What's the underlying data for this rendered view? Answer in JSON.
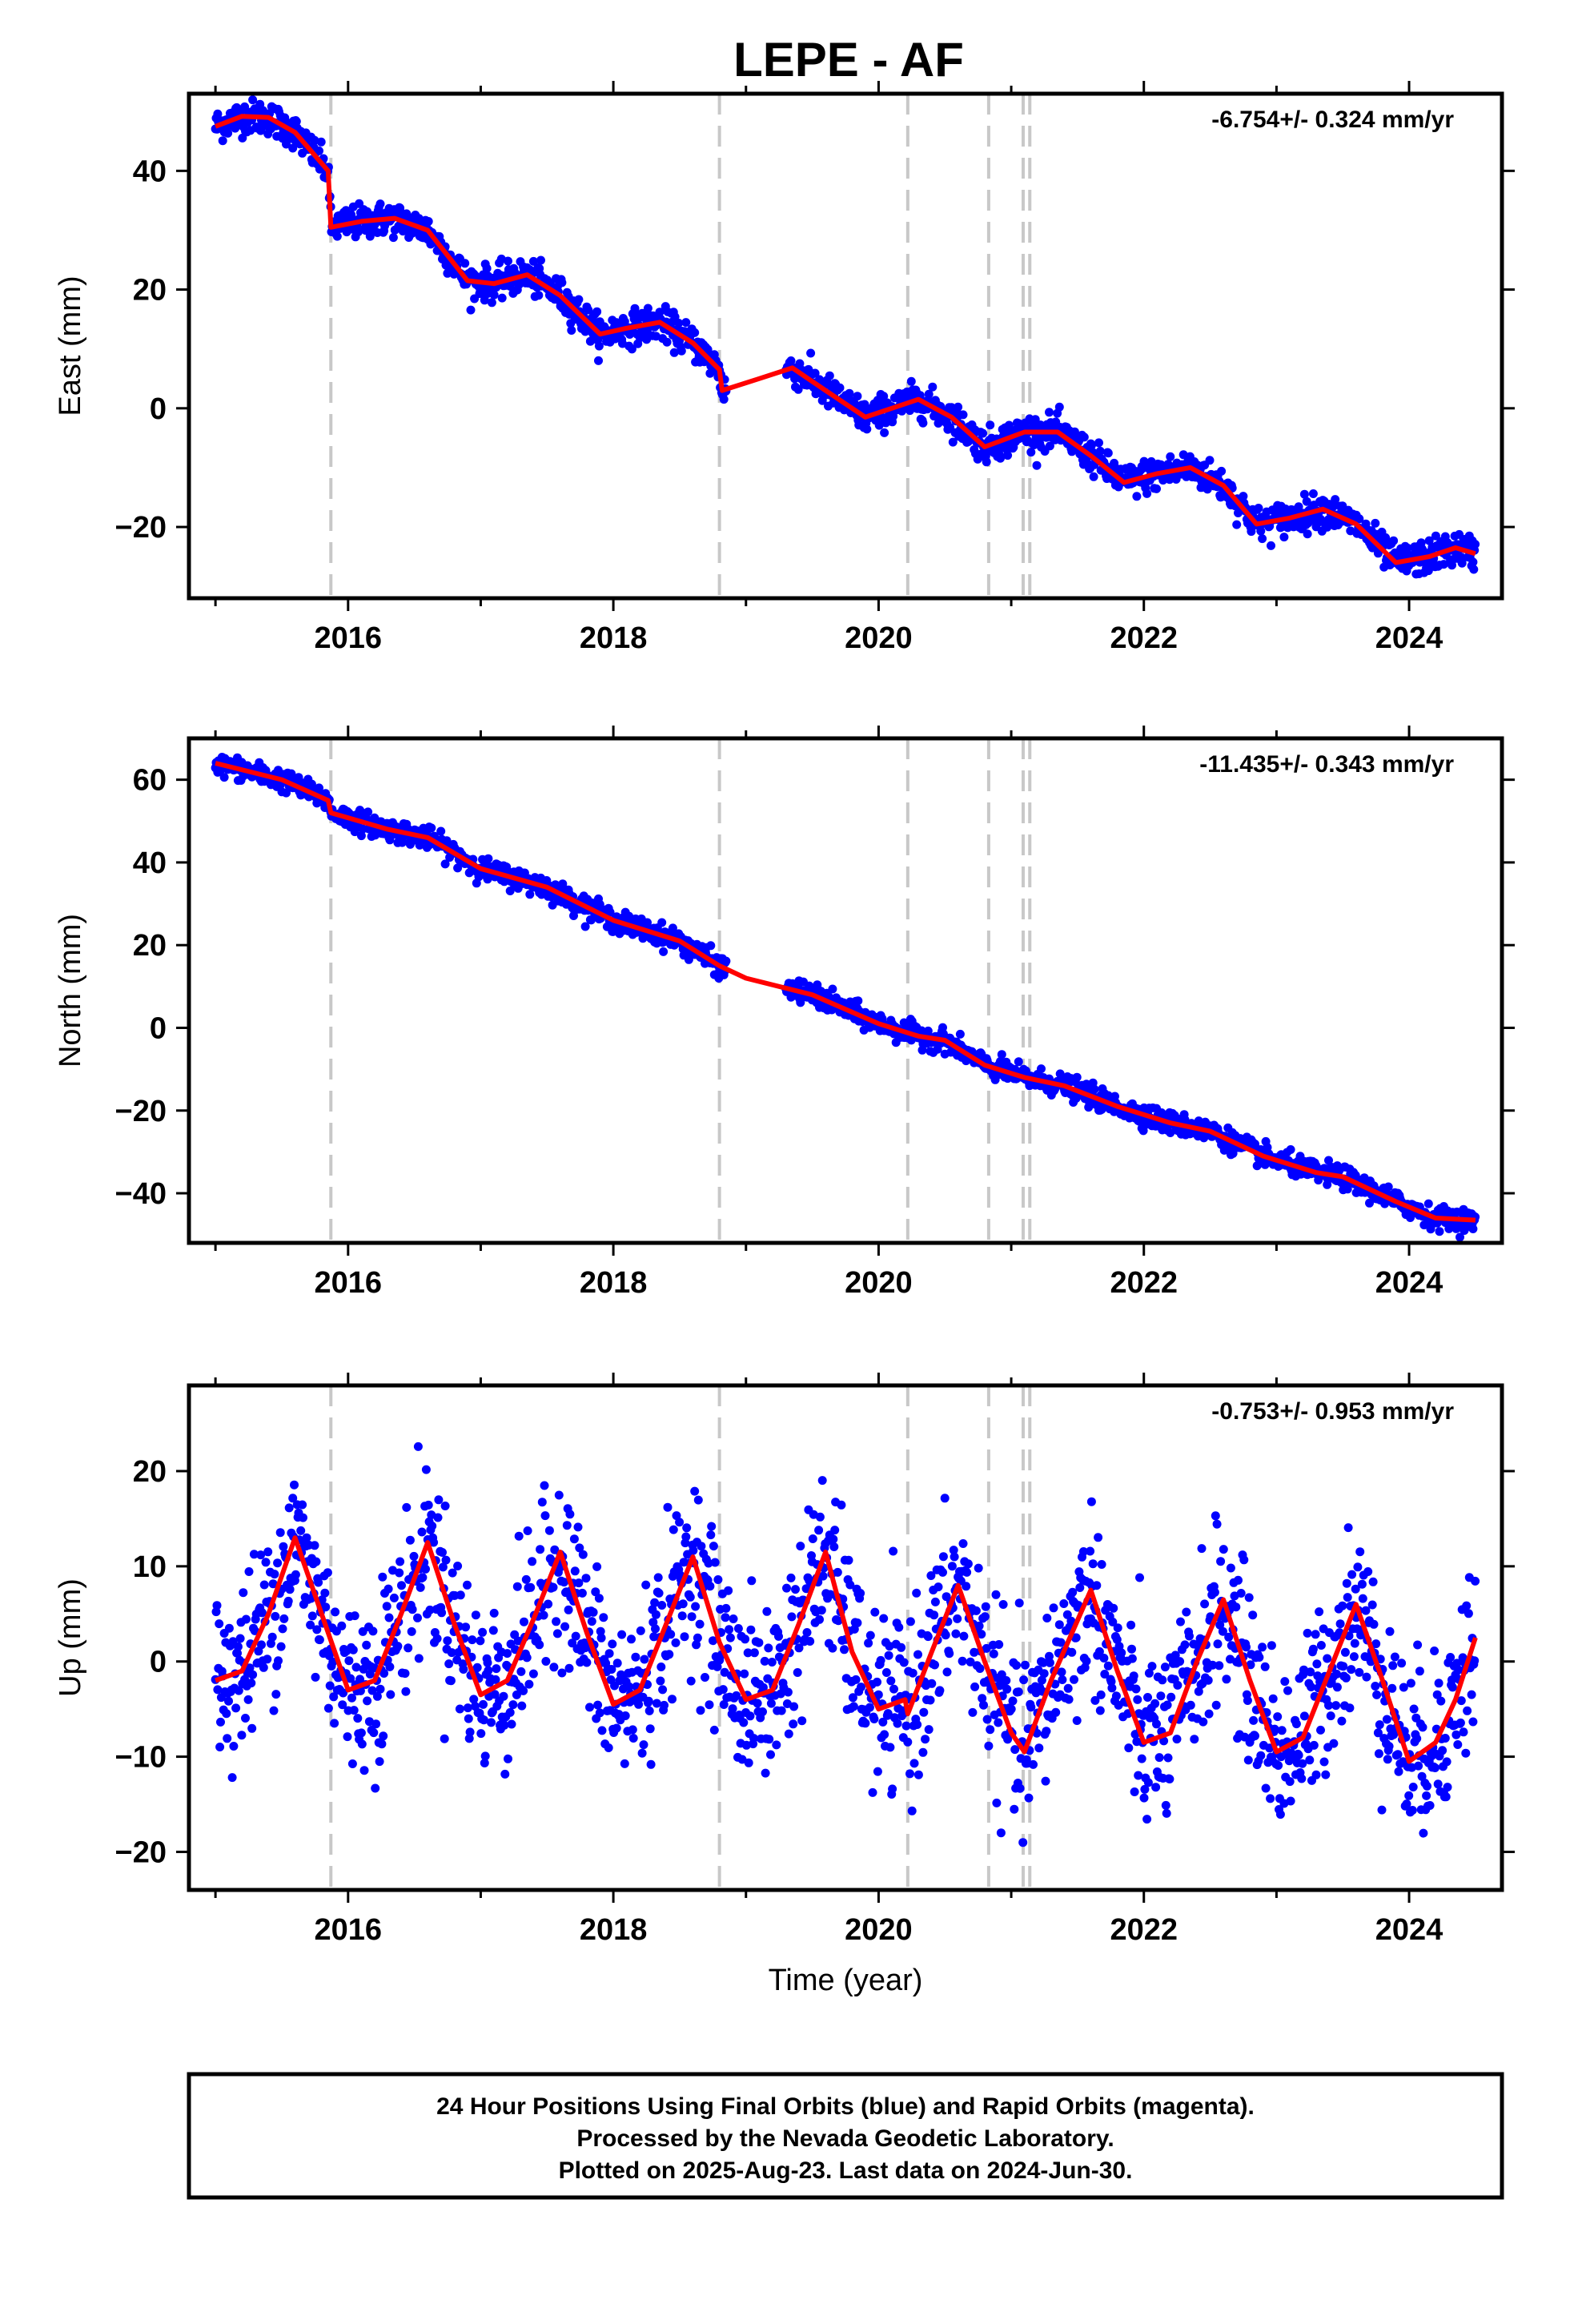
{
  "title": "LEPE - AF",
  "colors": {
    "points": "#0000ff",
    "model": "#ff0000",
    "events": "#c8c8c8",
    "frame": "#000000"
  },
  "caption": {
    "lines": [
      "24 Hour Positions Using Final Orbits (blue) and Rapid Orbits (magenta).",
      "Processed by the Nevada Geodetic Laboratory.",
      "Plotted on 2025-Aug-23. Last data on 2024-Jun-30."
    ]
  },
  "chart_data": [
    {
      "type": "scatter",
      "ylabel": "East (mm)",
      "rate": "-6.754+/- 0.324 mm/yr",
      "xlim": [
        2014.8,
        2024.7
      ],
      "ylim": [
        -32,
        53
      ],
      "yticks": [
        -20,
        0,
        20,
        40
      ],
      "xticks": [
        2016,
        2018,
        2020,
        2022,
        2024
      ],
      "x_tick_labels": [
        "2016",
        "2018",
        "2020",
        "2022",
        "2024"
      ],
      "y_tick_labels": [
        "−20",
        "0",
        "20",
        "40"
      ],
      "xlabel": "",
      "series": [
        {
          "kind": "points",
          "trend": -6.754,
          "offset_at_start": 47.5,
          "seasonal_amp": 2.2,
          "scatter_sd": 1.4
        },
        {
          "kind": "model",
          "points": [
            [
              2015.0,
              47.5
            ],
            [
              2015.2,
              49.2
            ],
            [
              2015.4,
              49.0
            ],
            [
              2015.6,
              46.5
            ],
            [
              2015.85,
              40.0
            ],
            [
              2015.87,
              30.5
            ],
            [
              2016.1,
              31.5
            ],
            [
              2016.35,
              32.0
            ],
            [
              2016.6,
              30.0
            ],
            [
              2016.9,
              21.5
            ],
            [
              2017.1,
              21.0
            ],
            [
              2017.35,
              22.5
            ],
            [
              2017.6,
              19.0
            ],
            [
              2017.9,
              12.5
            ],
            [
              2018.1,
              13.5
            ],
            [
              2018.35,
              14.5
            ],
            [
              2018.6,
              11.0
            ],
            [
              2018.8,
              6.5
            ],
            [
              2018.82,
              3.0
            ],
            [
              2019.1,
              5.0
            ],
            [
              2019.35,
              6.8
            ],
            [
              2019.6,
              3.0
            ],
            [
              2019.9,
              -1.5
            ],
            [
              2020.1,
              0.0
            ],
            [
              2020.3,
              1.5
            ],
            [
              2020.55,
              -1.5
            ],
            [
              2020.8,
              -6.5
            ],
            [
              2021.1,
              -4.0
            ],
            [
              2021.35,
              -4.0
            ],
            [
              2021.6,
              -8.0
            ],
            [
              2021.85,
              -12.5
            ],
            [
              2022.1,
              -11.0
            ],
            [
              2022.35,
              -10.0
            ],
            [
              2022.6,
              -13.0
            ],
            [
              2022.85,
              -19.5
            ],
            [
              2023.1,
              -18.5
            ],
            [
              2023.35,
              -17.0
            ],
            [
              2023.6,
              -19.5
            ],
            [
              2023.9,
              -26.0
            ],
            [
              2024.15,
              -25.0
            ],
            [
              2024.35,
              -23.5
            ],
            [
              2024.5,
              -24.5
            ]
          ]
        }
      ]
    },
    {
      "type": "scatter",
      "ylabel": "North (mm)",
      "rate": "-11.435+/- 0.343 mm/yr",
      "xlim": [
        2014.8,
        2024.7
      ],
      "ylim": [
        -52,
        70
      ],
      "yticks": [
        -40,
        -20,
        0,
        20,
        40,
        60
      ],
      "xticks": [
        2016,
        2018,
        2020,
        2022,
        2024
      ],
      "x_tick_labels": [
        "2016",
        "2018",
        "2020",
        "2022",
        "2024"
      ],
      "y_tick_labels": [
        "−40",
        "−20",
        "0",
        "20",
        "40",
        "60"
      ],
      "xlabel": "",
      "series": [
        {
          "kind": "points",
          "trend": -11.435,
          "offset_at_start": 63.5,
          "seasonal_amp": 1.2,
          "scatter_sd": 1.3
        },
        {
          "kind": "model",
          "points": [
            [
              2015.0,
              64.0
            ],
            [
              2015.5,
              60.0
            ],
            [
              2015.85,
              55.0
            ],
            [
              2015.87,
              52.0
            ],
            [
              2016.3,
              48.0
            ],
            [
              2016.6,
              46.0
            ],
            [
              2017.0,
              38.5
            ],
            [
              2017.5,
              34.0
            ],
            [
              2018.0,
              26.0
            ],
            [
              2018.5,
              21.0
            ],
            [
              2018.8,
              15.0
            ],
            [
              2019.0,
              12.0
            ],
            [
              2019.5,
              8.0
            ],
            [
              2020.0,
              1.0
            ],
            [
              2020.3,
              -2.0
            ],
            [
              2020.5,
              -3.0
            ],
            [
              2020.8,
              -9.0
            ],
            [
              2021.1,
              -12.0
            ],
            [
              2021.4,
              -14.0
            ],
            [
              2021.8,
              -19.0
            ],
            [
              2022.2,
              -23.0
            ],
            [
              2022.5,
              -25.0
            ],
            [
              2022.9,
              -31.0
            ],
            [
              2023.3,
              -35.0
            ],
            [
              2023.5,
              -36.0
            ],
            [
              2023.9,
              -42.0
            ],
            [
              2024.2,
              -46.0
            ],
            [
              2024.5,
              -46.5
            ]
          ]
        }
      ]
    },
    {
      "type": "scatter",
      "ylabel": "Up (mm)",
      "rate": "-0.753+/- 0.953 mm/yr",
      "xlim": [
        2014.8,
        2024.7
      ],
      "ylim": [
        -24,
        29
      ],
      "yticks": [
        -20,
        -10,
        0,
        10,
        20
      ],
      "xticks": [
        2016,
        2018,
        2020,
        2022,
        2024
      ],
      "x_tick_labels": [
        "2016",
        "2018",
        "2020",
        "2022",
        "2024"
      ],
      "y_tick_labels": [
        "−20",
        "−10",
        "0",
        "10",
        "20"
      ],
      "xlabel": "Time (year)",
      "series": [
        {
          "kind": "points",
          "trend": -0.753,
          "offset_at_start": 2.0,
          "seasonal_amp": 8.5,
          "scatter_sd": 4.5
        },
        {
          "kind": "model",
          "points": [
            [
              2015.0,
              -2.0
            ],
            [
              2015.2,
              -1.0
            ],
            [
              2015.4,
              5.0
            ],
            [
              2015.6,
              13.0
            ],
            [
              2015.8,
              5.0
            ],
            [
              2016.0,
              -3.0
            ],
            [
              2016.2,
              -2.0
            ],
            [
              2016.4,
              5.0
            ],
            [
              2016.6,
              12.5
            ],
            [
              2016.8,
              4.0
            ],
            [
              2017.0,
              -3.5
            ],
            [
              2017.2,
              -2.0
            ],
            [
              2017.4,
              4.5
            ],
            [
              2017.6,
              11.5
            ],
            [
              2017.8,
              3.0
            ],
            [
              2018.0,
              -4.5
            ],
            [
              2018.2,
              -3.0
            ],
            [
              2018.4,
              4.0
            ],
            [
              2018.6,
              11.0
            ],
            [
              2018.8,
              2.0
            ],
            [
              2019.0,
              -4.0
            ],
            [
              2019.2,
              -3.0
            ],
            [
              2019.4,
              4.0
            ],
            [
              2019.6,
              11.5
            ],
            [
              2019.8,
              1.0
            ],
            [
              2020.0,
              -5.0
            ],
            [
              2020.2,
              -4.0
            ],
            [
              2020.22,
              -5.5
            ],
            [
              2020.4,
              1.0
            ],
            [
              2020.6,
              8.0
            ],
            [
              2020.8,
              0.0
            ],
            [
              2021.0,
              -7.5
            ],
            [
              2021.1,
              -9.5
            ],
            [
              2021.3,
              -2.0
            ],
            [
              2021.6,
              7.5
            ],
            [
              2021.8,
              -1.0
            ],
            [
              2022.0,
              -8.5
            ],
            [
              2022.2,
              -7.5
            ],
            [
              2022.4,
              0.0
            ],
            [
              2022.6,
              6.5
            ],
            [
              2022.8,
              -2.0
            ],
            [
              2023.0,
              -9.5
            ],
            [
              2023.2,
              -8.0
            ],
            [
              2023.4,
              -1.0
            ],
            [
              2023.6,
              6.0
            ],
            [
              2023.8,
              -2.0
            ],
            [
              2024.0,
              -10.5
            ],
            [
              2024.2,
              -8.5
            ],
            [
              2024.35,
              -4.0
            ],
            [
              2024.5,
              2.5
            ]
          ]
        }
      ]
    }
  ],
  "event_lines": [
    2015.87,
    2018.8,
    2020.22,
    2020.83,
    2021.09,
    2021.14
  ]
}
